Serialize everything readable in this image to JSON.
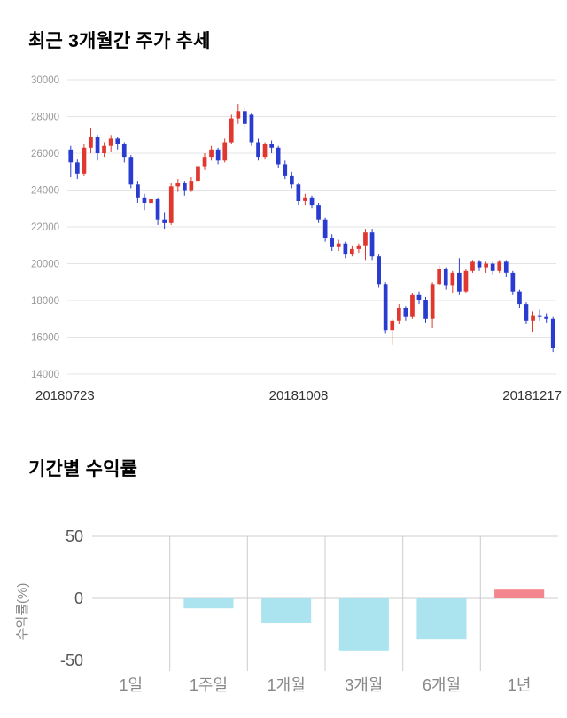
{
  "sections": {
    "price_trend": {
      "title": "최근 3개월간 주가 추세"
    },
    "returns": {
      "title": "기간별 수익률"
    }
  },
  "chart_data": [
    {
      "type": "candlestick",
      "title": "최근 3개월간 주가 추세",
      "ylim": [
        14000,
        30000
      ],
      "y_ticks": [
        30000,
        28000,
        26000,
        24000,
        22000,
        20000,
        18000,
        16000,
        14000
      ],
      "x_labels": [
        "20180723",
        "20181008",
        "20181217"
      ],
      "up_color": "#e0382e",
      "down_color": "#2a3cd0",
      "grid_color": "#e4e4e4",
      "tick_color": "#999999",
      "ohlc": [
        [
          26200,
          26400,
          24700,
          25500
        ],
        [
          25500,
          25700,
          24600,
          24900
        ],
        [
          24900,
          26500,
          24800,
          26300
        ],
        [
          26300,
          27400,
          26000,
          26900
        ],
        [
          26900,
          27000,
          25600,
          26000
        ],
        [
          26000,
          26600,
          25800,
          26400
        ],
        [
          26400,
          27000,
          26100,
          26800
        ],
        [
          26800,
          26900,
          26200,
          26500
        ],
        [
          26500,
          26600,
          25500,
          25800
        ],
        [
          25800,
          25900,
          24100,
          24300
        ],
        [
          24300,
          24500,
          23300,
          23600
        ],
        [
          23600,
          23800,
          22900,
          23300
        ],
        [
          23300,
          23700,
          23000,
          23500
        ],
        [
          23500,
          23600,
          22100,
          22400
        ],
        [
          22400,
          22800,
          21900,
          22200
        ],
        [
          22200,
          24400,
          22100,
          24200
        ],
        [
          24200,
          24600,
          23900,
          24400
        ],
        [
          24400,
          24500,
          23700,
          24000
        ],
        [
          24000,
          24700,
          23900,
          24500
        ],
        [
          24500,
          25400,
          24300,
          25300
        ],
        [
          25300,
          26000,
          25100,
          25800
        ],
        [
          25800,
          26400,
          25600,
          26200
        ],
        [
          26200,
          26300,
          25400,
          25600
        ],
        [
          25600,
          26800,
          25500,
          26600
        ],
        [
          26600,
          28100,
          26500,
          27900
        ],
        [
          27900,
          28700,
          27600,
          28300
        ],
        [
          28300,
          28500,
          27300,
          27600
        ],
        [
          28100,
          28200,
          26400,
          26600
        ],
        [
          26600,
          26800,
          25600,
          25800
        ],
        [
          25800,
          26600,
          25700,
          26500
        ],
        [
          26500,
          26700,
          26000,
          26300
        ],
        [
          26300,
          26400,
          25200,
          25400
        ],
        [
          25400,
          25600,
          24600,
          24800
        ],
        [
          24800,
          25000,
          24100,
          24300
        ],
        [
          24300,
          24400,
          23200,
          23400
        ],
        [
          23400,
          23800,
          23200,
          23600
        ],
        [
          23600,
          23700,
          23000,
          23200
        ],
        [
          23200,
          23300,
          22200,
          22400
        ],
        [
          22400,
          22500,
          21200,
          21400
        ],
        [
          21400,
          21600,
          20700,
          20900
        ],
        [
          20900,
          21300,
          20700,
          21100
        ],
        [
          21100,
          21200,
          20300,
          20500
        ],
        [
          20500,
          21000,
          20400,
          20800
        ],
        [
          20800,
          21100,
          20600,
          21000
        ],
        [
          21000,
          21900,
          20200,
          21700
        ],
        [
          21700,
          21900,
          20200,
          20400
        ],
        [
          20400,
          20500,
          18700,
          18900
        ],
        [
          18900,
          19000,
          16200,
          16400
        ],
        [
          16400,
          17000,
          15600,
          16900
        ],
        [
          16900,
          17800,
          16700,
          17600
        ],
        [
          17600,
          17700,
          16900,
          17100
        ],
        [
          17100,
          18400,
          17000,
          18300
        ],
        [
          18300,
          18500,
          17800,
          18000
        ],
        [
          18000,
          18200,
          16800,
          17000
        ],
        [
          17000,
          19000,
          16500,
          18900
        ],
        [
          18900,
          19900,
          18800,
          19700
        ],
        [
          19700,
          19800,
          18600,
          18800
        ],
        [
          18800,
          19600,
          18400,
          19500
        ],
        [
          19500,
          20300,
          18300,
          18500
        ],
        [
          18500,
          19700,
          18400,
          19600
        ],
        [
          19600,
          20200,
          19500,
          20100
        ],
        [
          20100,
          20200,
          19600,
          19800
        ],
        [
          19800,
          20100,
          19500,
          20000
        ],
        [
          20000,
          20100,
          19400,
          19600
        ],
        [
          19600,
          20200,
          19500,
          20100
        ],
        [
          20100,
          20200,
          19300,
          19500
        ],
        [
          19500,
          19600,
          18300,
          18500
        ],
        [
          18500,
          18600,
          17600,
          17800
        ],
        [
          17800,
          17900,
          16700,
          16900
        ],
        [
          16900,
          17400,
          16300,
          17200
        ],
        [
          17200,
          17500,
          16900,
          17100
        ],
        [
          17100,
          17300,
          16800,
          17000
        ],
        [
          17000,
          17100,
          15200,
          15400
        ]
      ]
    },
    {
      "type": "bar",
      "title": "기간별 수익률",
      "ylabel": "수익률(%)",
      "categories": [
        "1일",
        "1주일",
        "1개월",
        "3개월",
        "6개월",
        "1년"
      ],
      "values": [
        0,
        -8,
        -20,
        -42,
        -33,
        7
      ],
      "y_ticks": [
        50,
        0,
        -50
      ],
      "ylim": [
        -50,
        50
      ],
      "grid_on": true,
      "legend": "none",
      "positive_color": "#f3868e",
      "negative_color": "#abe3ef",
      "grid_color": "#cccccc",
      "tick_color": "#555555",
      "category_color": "#888888"
    }
  ]
}
